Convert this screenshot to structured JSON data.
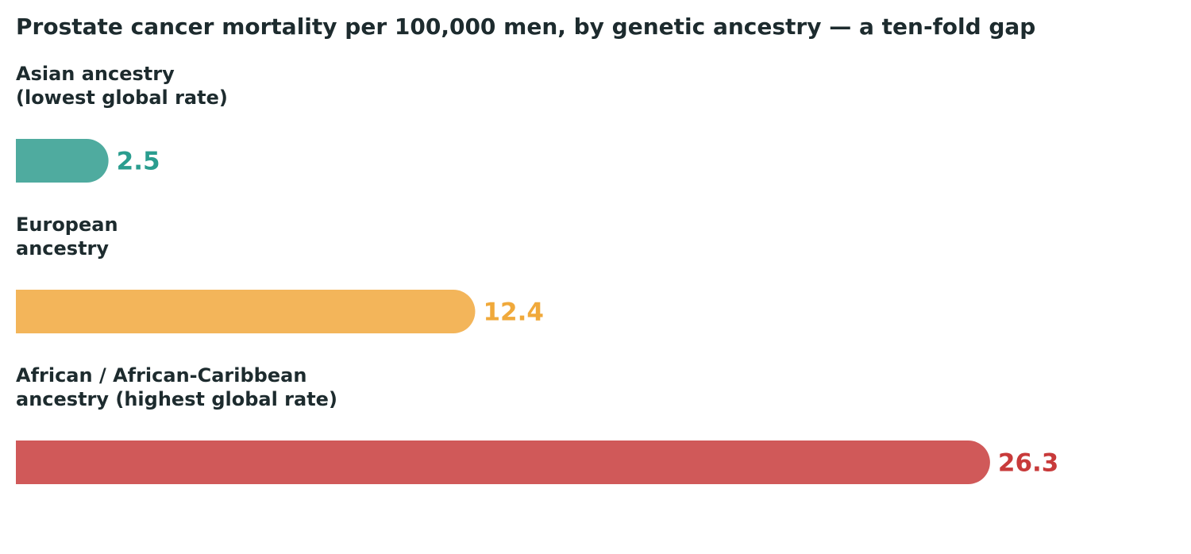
{
  "chart_data": {
    "type": "bar",
    "orientation": "horizontal",
    "title": "Prostate cancer mortality per 100,000 men, by genetic ancestry — a ten-fold gap",
    "categories": [
      [
        "Asian ancestry",
        "(lowest global rate)"
      ],
      [
        "European",
        "ancestry"
      ],
      [
        "African / African-Caribbean",
        "ancestry (highest global rate)"
      ]
    ],
    "values": [
      2.5,
      12.4,
      26.3
    ],
    "value_labels": [
      "2.5",
      "12.4",
      "26.3"
    ],
    "bar_colors": [
      "#4fab9f",
      "#f3b55a",
      "#d05959"
    ],
    "label_colors": [
      "#2a9d8f",
      "#f0a93b",
      "#c83a3a"
    ],
    "xlim": [
      0,
      31
    ],
    "grid": false,
    "legend": "none"
  }
}
